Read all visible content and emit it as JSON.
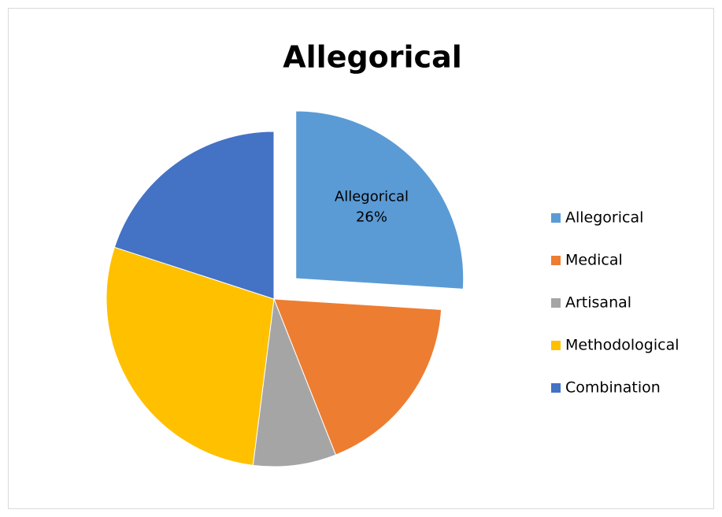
{
  "chart_data": {
    "type": "pie",
    "title": "Allegorical",
    "categories": [
      "Allegorical",
      "Medical",
      "Artisanal",
      "Methodological",
      "Combination"
    ],
    "values": [
      26,
      18,
      8,
      28,
      20
    ],
    "value_labels": [
      "26%",
      null,
      null,
      null,
      null
    ],
    "colors": [
      "#5b9bd5",
      "#ed7d31",
      "#a5a5a5",
      "#ffc000",
      "#4472c4"
    ],
    "exploded": [
      true,
      false,
      false,
      false,
      false
    ],
    "legend": "right"
  }
}
